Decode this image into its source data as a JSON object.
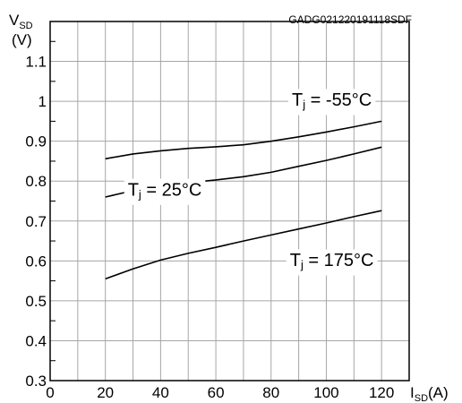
{
  "chart_data": {
    "type": "line",
    "title": "",
    "figure_id": "GADG021220191118SDF",
    "ylabel": {
      "main": "V",
      "sub": "SD",
      "unit": "(V)"
    },
    "xlabel": {
      "main": "I",
      "sub": "SD",
      "unit": "(A)"
    },
    "xlim": [
      0,
      130
    ],
    "ylim": [
      0.3,
      1.2
    ],
    "xticks": [
      0,
      20,
      40,
      60,
      80,
      100,
      120
    ],
    "yticks": [
      0.3,
      0.4,
      0.5,
      0.6,
      0.7,
      0.8,
      0.9,
      1,
      1.1
    ],
    "grid": true,
    "series": [
      {
        "label_main": "T",
        "label_sub": "j",
        "label_rest": " = -55°C",
        "x": [
          20,
          30,
          40,
          50,
          60,
          70,
          80,
          90,
          100,
          110,
          120
        ],
        "y": [
          0.856,
          0.868,
          0.876,
          0.882,
          0.886,
          0.891,
          0.9,
          0.911,
          0.923,
          0.936,
          0.95
        ]
      },
      {
        "label_main": "T",
        "label_sub": "j",
        "label_rest": " = 25°C",
        "x": [
          20,
          30,
          40,
          50,
          60,
          70,
          80,
          90,
          100,
          110,
          120
        ],
        "y": [
          0.76,
          0.776,
          0.788,
          0.796,
          0.803,
          0.811,
          0.822,
          0.837,
          0.852,
          0.868,
          0.885
        ]
      },
      {
        "label_main": "T",
        "label_sub": "j",
        "label_rest": " = 175°C",
        "x": [
          20,
          30,
          40,
          50,
          60,
          70,
          80,
          90,
          100,
          110,
          120
        ],
        "y": [
          0.555,
          0.58,
          0.602,
          0.619,
          0.634,
          0.65,
          0.665,
          0.68,
          0.695,
          0.711,
          0.726
        ]
      }
    ]
  }
}
